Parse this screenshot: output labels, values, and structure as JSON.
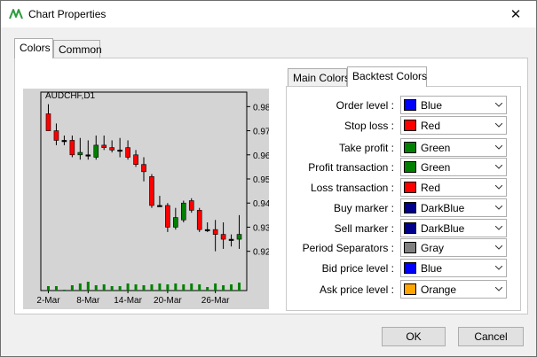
{
  "window": {
    "title": "Chart Properties"
  },
  "tabs": [
    {
      "label": "Colors"
    },
    {
      "label": "Common"
    }
  ],
  "chart": {
    "symbol_title": "AUDCHF,D1"
  },
  "inner_tabs": [
    {
      "label": "Main Colors"
    },
    {
      "label": "Backtest Colors"
    }
  ],
  "color_rows": [
    {
      "label": "Order level :",
      "value": "Blue",
      "color": "#0000ff"
    },
    {
      "label": "Stop loss :",
      "value": "Red",
      "color": "#ff0000"
    },
    {
      "label": "Take profit :",
      "value": "Green",
      "color": "#008000"
    },
    {
      "label": "Profit transaction :",
      "value": "Green",
      "color": "#008000"
    },
    {
      "label": "Loss transaction :",
      "value": "Red",
      "color": "#ff0000"
    },
    {
      "label": "Buy marker :",
      "value": "DarkBlue",
      "color": "#00008b"
    },
    {
      "label": "Sell marker :",
      "value": "DarkBlue",
      "color": "#00008b"
    },
    {
      "label": "Period Separators :",
      "value": "Gray",
      "color": "#808080"
    },
    {
      "label": "Bid price level :",
      "value": "Blue",
      "color": "#0000ff"
    },
    {
      "label": "Ask price level :",
      "value": "Orange",
      "color": "#ffa500"
    }
  ],
  "buttons": {
    "ok": "OK",
    "cancel": "Cancel"
  },
  "chart_data": {
    "type": "candlestick",
    "title": "AUDCHF,D1",
    "y_ticks": [
      "0.98",
      "0.97",
      "0.96",
      "0.95",
      "0.94",
      "0.93",
      "0.92"
    ],
    "x_ticks": [
      "2-Mar",
      "8-Mar",
      "14-Mar",
      "20-Mar",
      "26-Mar"
    ],
    "ylim": [
      0.914,
      0.986
    ],
    "candles": [
      {
        "o": 0.977,
        "h": 0.981,
        "l": 0.97,
        "c": 0.97
      },
      {
        "o": 0.97,
        "h": 0.973,
        "l": 0.964,
        "c": 0.966
      },
      {
        "o": 0.966,
        "h": 0.968,
        "l": 0.964,
        "c": 0.966
      },
      {
        "o": 0.966,
        "h": 0.968,
        "l": 0.959,
        "c": 0.96
      },
      {
        "o": 0.96,
        "h": 0.967,
        "l": 0.958,
        "c": 0.961
      },
      {
        "o": 0.96,
        "h": 0.966,
        "l": 0.958,
        "c": 0.96
      },
      {
        "o": 0.959,
        "h": 0.968,
        "l": 0.958,
        "c": 0.964
      },
      {
        "o": 0.964,
        "h": 0.968,
        "l": 0.962,
        "c": 0.963
      },
      {
        "o": 0.963,
        "h": 0.966,
        "l": 0.961,
        "c": 0.962
      },
      {
        "o": 0.962,
        "h": 0.967,
        "l": 0.959,
        "c": 0.962
      },
      {
        "o": 0.963,
        "h": 0.966,
        "l": 0.958,
        "c": 0.959
      },
      {
        "o": 0.96,
        "h": 0.962,
        "l": 0.955,
        "c": 0.956
      },
      {
        "o": 0.956,
        "h": 0.959,
        "l": 0.949,
        "c": 0.953
      },
      {
        "o": 0.951,
        "h": 0.952,
        "l": 0.938,
        "c": 0.939
      },
      {
        "o": 0.939,
        "h": 0.943,
        "l": 0.939,
        "c": 0.939
      },
      {
        "o": 0.939,
        "h": 0.94,
        "l": 0.928,
        "c": 0.93
      },
      {
        "o": 0.93,
        "h": 0.938,
        "l": 0.929,
        "c": 0.934
      },
      {
        "o": 0.933,
        "h": 0.941,
        "l": 0.932,
        "c": 0.94
      },
      {
        "o": 0.941,
        "h": 0.942,
        "l": 0.936,
        "c": 0.937
      },
      {
        "o": 0.937,
        "h": 0.938,
        "l": 0.928,
        "c": 0.929
      },
      {
        "o": 0.929,
        "h": 0.932,
        "l": 0.928,
        "c": 0.929
      },
      {
        "o": 0.929,
        "h": 0.933,
        "l": 0.92,
        "c": 0.927
      },
      {
        "o": 0.927,
        "h": 0.932,
        "l": 0.921,
        "c": 0.925
      },
      {
        "o": 0.925,
        "h": 0.927,
        "l": 0.922,
        "c": 0.925
      },
      {
        "o": 0.925,
        "h": 0.935,
        "l": 0.921,
        "c": 0.927
      }
    ],
    "volume_relative": [
      0.5,
      0.5,
      0.1,
      0.6,
      0.8,
      1.0,
      0.6,
      0.7,
      0.5,
      0.5,
      0.8,
      0.7,
      0.6,
      0.7,
      0.8,
      0.7,
      0.8,
      0.7,
      0.8,
      0.7,
      0.4,
      0.8,
      0.6,
      0.7,
      0.9
    ],
    "colors": {
      "bull": "#008000",
      "bear": "#ff0000",
      "doji": "#000000",
      "background": "#d4d4d4"
    }
  }
}
